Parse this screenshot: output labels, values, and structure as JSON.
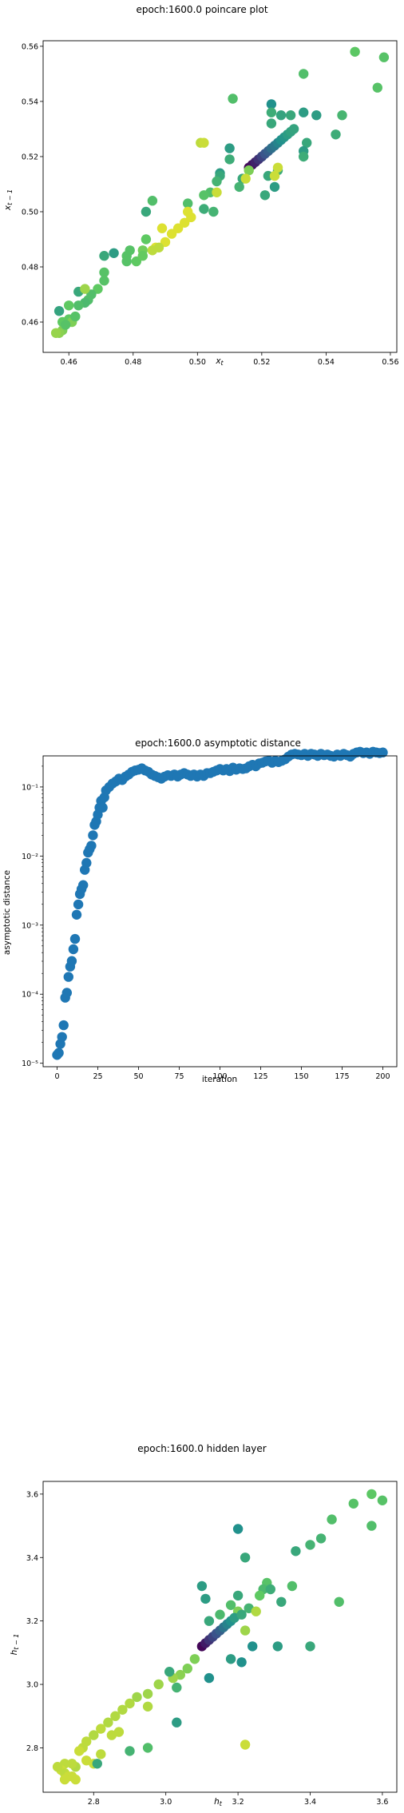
{
  "chart_data": [
    {
      "type": "scatter",
      "title": "epoch:1600.0 poincare plot",
      "xlabel": "x_t",
      "ylabel": "x_{t-1}",
      "xlim": [
        0.452,
        0.562
      ],
      "ylim": [
        0.449,
        0.562
      ],
      "xticks": [
        "0.46",
        "0.48",
        "0.50",
        "0.52",
        "0.54",
        "0.56"
      ],
      "yticks": [
        "0.46",
        "0.48",
        "0.50",
        "0.52",
        "0.54",
        "0.56"
      ],
      "grid": false,
      "colormap": "viridis",
      "points": [
        [
          0.52,
          0.52,
          0.55
        ],
        [
          0.549,
          0.558,
          0.74
        ],
        [
          0.558,
          0.556,
          0.72
        ],
        [
          0.556,
          0.545,
          0.72
        ],
        [
          0.511,
          0.541,
          0.7
        ],
        [
          0.533,
          0.55,
          0.7
        ],
        [
          0.545,
          0.535,
          0.66
        ],
        [
          0.537,
          0.535,
          0.55
        ],
        [
          0.533,
          0.536,
          0.55
        ],
        [
          0.529,
          0.535,
          0.6
        ],
        [
          0.526,
          0.535,
          0.58
        ],
        [
          0.523,
          0.539,
          0.5
        ],
        [
          0.523,
          0.536,
          0.62
        ],
        [
          0.523,
          0.532,
          0.6
        ],
        [
          0.543,
          0.528,
          0.62
        ],
        [
          0.534,
          0.525,
          0.6
        ],
        [
          0.533,
          0.522,
          0.55
        ],
        [
          0.533,
          0.52,
          0.62
        ],
        [
          0.525,
          0.515,
          0.62
        ],
        [
          0.522,
          0.513,
          0.6
        ],
        [
          0.524,
          0.509,
          0.55
        ],
        [
          0.521,
          0.506,
          0.6
        ],
        [
          0.514,
          0.512,
          0.6
        ],
        [
          0.513,
          0.509,
          0.65
        ],
        [
          0.51,
          0.523,
          0.55
        ],
        [
          0.51,
          0.519,
          0.62
        ],
        [
          0.507,
          0.514,
          0.55
        ],
        [
          0.507,
          0.513,
          0.6
        ],
        [
          0.506,
          0.511,
          0.65
        ],
        [
          0.504,
          0.507,
          0.7
        ],
        [
          0.502,
          0.506,
          0.72
        ],
        [
          0.502,
          0.501,
          0.62
        ],
        [
          0.505,
          0.5,
          0.65
        ],
        [
          0.497,
          0.503,
          0.7
        ],
        [
          0.501,
          0.525,
          0.9
        ],
        [
          0.502,
          0.525,
          0.92
        ],
        [
          0.497,
          0.5,
          0.95
        ],
        [
          0.486,
          0.504,
          0.7
        ],
        [
          0.484,
          0.5,
          0.6
        ],
        [
          0.489,
          0.494,
          0.95
        ],
        [
          0.484,
          0.49,
          0.75
        ],
        [
          0.483,
          0.486,
          0.78
        ],
        [
          0.479,
          0.486,
          0.72
        ],
        [
          0.478,
          0.484,
          0.72
        ],
        [
          0.474,
          0.485,
          0.55
        ],
        [
          0.478,
          0.482,
          0.72
        ],
        [
          0.481,
          0.482,
          0.75
        ],
        [
          0.483,
          0.484,
          0.76
        ],
        [
          0.487,
          0.487,
          0.95
        ],
        [
          0.49,
          0.489,
          0.95
        ],
        [
          0.492,
          0.492,
          0.95
        ],
        [
          0.494,
          0.494,
          0.95
        ],
        [
          0.496,
          0.496,
          0.95
        ],
        [
          0.498,
          0.498,
          0.95
        ],
        [
          0.488,
          0.487,
          0.9
        ],
        [
          0.486,
          0.486,
          0.9
        ],
        [
          0.471,
          0.484,
          0.6
        ],
        [
          0.471,
          0.478,
          0.72
        ],
        [
          0.471,
          0.475,
          0.72
        ],
        [
          0.469,
          0.472,
          0.75
        ],
        [
          0.467,
          0.47,
          0.7
        ],
        [
          0.466,
          0.468,
          0.7
        ],
        [
          0.465,
          0.467,
          0.68
        ],
        [
          0.463,
          0.471,
          0.6
        ],
        [
          0.465,
          0.472,
          0.85
        ],
        [
          0.463,
          0.466,
          0.7
        ],
        [
          0.46,
          0.466,
          0.75
        ],
        [
          0.457,
          0.464,
          0.58
        ],
        [
          0.458,
          0.46,
          0.75
        ],
        [
          0.46,
          0.461,
          0.75
        ],
        [
          0.461,
          0.46,
          0.8
        ],
        [
          0.462,
          0.462,
          0.72
        ],
        [
          0.458,
          0.457,
          0.8
        ],
        [
          0.457,
          0.456,
          0.82
        ],
        [
          0.456,
          0.456,
          0.84
        ],
        [
          0.459,
          0.459,
          0.72
        ],
        [
          0.516,
          0.516,
          0.02
        ],
        [
          0.517,
          0.517,
          0.05
        ],
        [
          0.518,
          0.518,
          0.1
        ],
        [
          0.519,
          0.519,
          0.15
        ],
        [
          0.52,
          0.52,
          0.2
        ],
        [
          0.521,
          0.521,
          0.26
        ],
        [
          0.522,
          0.522,
          0.3
        ],
        [
          0.523,
          0.523,
          0.36
        ],
        [
          0.524,
          0.524,
          0.4
        ],
        [
          0.525,
          0.525,
          0.45
        ],
        [
          0.526,
          0.526,
          0.5
        ],
        [
          0.527,
          0.527,
          0.52
        ],
        [
          0.528,
          0.528,
          0.55
        ],
        [
          0.529,
          0.529,
          0.57
        ],
        [
          0.53,
          0.53,
          0.58
        ],
        [
          0.516,
          0.515,
          0.8
        ],
        [
          0.525,
          0.516,
          0.92
        ],
        [
          0.524,
          0.513,
          0.92
        ],
        [
          0.515,
          0.512,
          0.92
        ],
        [
          0.506,
          0.507,
          0.92
        ]
      ]
    },
    {
      "type": "scatter",
      "title": "epoch:1600.0 asymptotic distance",
      "xlabel": "iteration",
      "ylabel": "asymptotic distance",
      "xlim": [
        -8.6,
        208.6
      ],
      "ylim_log10": [
        -5.05,
        -0.55
      ],
      "yscale": "log",
      "xticks": [
        "0",
        "25",
        "50",
        "75",
        "100",
        "125",
        "150",
        "175",
        "200"
      ],
      "yticks": [
        "10⁻⁵",
        "10⁻⁴",
        "10⁻³",
        "10⁻²",
        "10⁻¹"
      ],
      "grid": false,
      "color": "#1f77b4",
      "series_log10": [
        [
          0,
          -4.88
        ],
        [
          1,
          -4.85
        ],
        [
          2,
          -4.72
        ],
        [
          3,
          -4.62
        ],
        [
          4,
          -4.45
        ],
        [
          5,
          -4.05
        ],
        [
          6,
          -3.98
        ],
        [
          7,
          -3.75
        ],
        [
          8,
          -3.6
        ],
        [
          9,
          -3.52
        ],
        [
          10,
          -3.35
        ],
        [
          11,
          -3.2
        ],
        [
          12,
          -2.85
        ],
        [
          13,
          -2.7
        ],
        [
          14,
          -2.55
        ],
        [
          15,
          -2.48
        ],
        [
          16,
          -2.42
        ],
        [
          17,
          -2.2
        ],
        [
          18,
          -2.1
        ],
        [
          19,
          -1.95
        ],
        [
          20,
          -1.9
        ],
        [
          21,
          -1.85
        ],
        [
          22,
          -1.7
        ],
        [
          23,
          -1.55
        ],
        [
          24,
          -1.5
        ],
        [
          25,
          -1.4
        ],
        [
          26,
          -1.3
        ],
        [
          27,
          -1.2
        ],
        [
          28,
          -1.3
        ],
        [
          29,
          -1.15
        ],
        [
          30,
          -1.05
        ],
        [
          32,
          -1.0
        ],
        [
          34,
          -0.95
        ],
        [
          36,
          -0.92
        ],
        [
          38,
          -0.88
        ],
        [
          40,
          -0.9
        ],
        [
          42,
          -0.85
        ],
        [
          44,
          -0.82
        ],
        [
          46,
          -0.78
        ],
        [
          48,
          -0.76
        ],
        [
          50,
          -0.75
        ],
        [
          52,
          -0.73
        ],
        [
          54,
          -0.76
        ],
        [
          56,
          -0.78
        ],
        [
          58,
          -0.82
        ],
        [
          60,
          -0.84
        ],
        [
          62,
          -0.86
        ],
        [
          64,
          -0.88
        ],
        [
          66,
          -0.85
        ],
        [
          68,
          -0.83
        ],
        [
          70,
          -0.84
        ],
        [
          72,
          -0.82
        ],
        [
          74,
          -0.85
        ],
        [
          76,
          -0.82
        ],
        [
          78,
          -0.8
        ],
        [
          80,
          -0.82
        ],
        [
          82,
          -0.84
        ],
        [
          84,
          -0.82
        ],
        [
          86,
          -0.85
        ],
        [
          88,
          -0.82
        ],
        [
          90,
          -0.84
        ],
        [
          92,
          -0.8
        ],
        [
          94,
          -0.8
        ],
        [
          96,
          -0.78
        ],
        [
          98,
          -0.76
        ],
        [
          100,
          -0.74
        ],
        [
          102,
          -0.76
        ],
        [
          104,
          -0.74
        ],
        [
          106,
          -0.77
        ],
        [
          108,
          -0.72
        ],
        [
          110,
          -0.75
        ],
        [
          112,
          -0.73
        ],
        [
          114,
          -0.74
        ],
        [
          116,
          -0.73
        ],
        [
          118,
          -0.7
        ],
        [
          120,
          -0.68
        ],
        [
          122,
          -0.7
        ],
        [
          124,
          -0.66
        ],
        [
          126,
          -0.65
        ],
        [
          128,
          -0.63
        ],
        [
          130,
          -0.62
        ],
        [
          132,
          -0.65
        ],
        [
          134,
          -0.62
        ],
        [
          136,
          -0.64
        ],
        [
          138,
          -0.62
        ],
        [
          140,
          -0.6
        ],
        [
          142,
          -0.56
        ],
        [
          144,
          -0.53
        ],
        [
          146,
          -0.52
        ],
        [
          148,
          -0.53
        ],
        [
          150,
          -0.54
        ],
        [
          152,
          -0.52
        ],
        [
          154,
          -0.55
        ],
        [
          156,
          -0.52
        ],
        [
          158,
          -0.53
        ],
        [
          160,
          -0.55
        ],
        [
          162,
          -0.52
        ],
        [
          164,
          -0.54
        ],
        [
          166,
          -0.53
        ],
        [
          168,
          -0.55
        ],
        [
          170,
          -0.56
        ],
        [
          172,
          -0.53
        ],
        [
          174,
          -0.55
        ],
        [
          176,
          -0.52
        ],
        [
          178,
          -0.54
        ],
        [
          180,
          -0.56
        ],
        [
          182,
          -0.52
        ],
        [
          184,
          -0.5
        ],
        [
          186,
          -0.49
        ],
        [
          188,
          -0.51
        ],
        [
          190,
          -0.5
        ],
        [
          192,
          -0.52
        ],
        [
          194,
          -0.49
        ],
        [
          196,
          -0.5
        ],
        [
          198,
          -0.51
        ],
        [
          200,
          -0.5
        ]
      ]
    },
    {
      "type": "scatter",
      "title": "epoch:1600.0 hidden layer",
      "xlabel": "h_t",
      "ylabel": "h_{t-1}",
      "xlim": [
        2.66,
        3.64
      ],
      "ylim": [
        2.66,
        3.64
      ],
      "xticks": [
        "2.8",
        "3.0",
        "3.2",
        "3.4",
        "3.6"
      ],
      "yticks": [
        "2.8",
        "3.0",
        "3.2",
        "3.4",
        "3.6"
      ],
      "grid": false,
      "colormap": "viridis",
      "points": [
        [
          3.57,
          3.6,
          0.74
        ],
        [
          3.6,
          3.58,
          0.72
        ],
        [
          3.52,
          3.57,
          0.72
        ],
        [
          3.57,
          3.5,
          0.7
        ],
        [
          3.46,
          3.52,
          0.7
        ],
        [
          3.43,
          3.46,
          0.65
        ],
        [
          3.4,
          3.44,
          0.65
        ],
        [
          3.36,
          3.42,
          0.6
        ],
        [
          3.22,
          3.4,
          0.6
        ],
        [
          3.2,
          3.49,
          0.5
        ],
        [
          3.28,
          3.32,
          0.72
        ],
        [
          3.35,
          3.31,
          0.7
        ],
        [
          3.27,
          3.3,
          0.68
        ],
        [
          3.32,
          3.26,
          0.6
        ],
        [
          3.48,
          3.26,
          0.7
        ],
        [
          3.2,
          3.28,
          0.6
        ],
        [
          3.18,
          3.25,
          0.7
        ],
        [
          3.15,
          3.22,
          0.68
        ],
        [
          3.12,
          3.2,
          0.6
        ],
        [
          3.1,
          3.31,
          0.55
        ],
        [
          3.2,
          3.23,
          0.8
        ],
        [
          3.18,
          3.08,
          0.55
        ],
        [
          3.12,
          3.02,
          0.5
        ],
        [
          3.21,
          3.07,
          0.5
        ],
        [
          3.24,
          3.12,
          0.5
        ],
        [
          3.31,
          3.12,
          0.55
        ],
        [
          3.4,
          3.12,
          0.6
        ],
        [
          3.08,
          3.08,
          0.8
        ],
        [
          3.06,
          3.05,
          0.8
        ],
        [
          3.04,
          3.03,
          0.82
        ],
        [
          3.02,
          3.02,
          0.85
        ],
        [
          3.01,
          3.04,
          0.6
        ],
        [
          3.03,
          2.99,
          0.65
        ],
        [
          3.03,
          2.88,
          0.55
        ],
        [
          2.98,
          3.0,
          0.85
        ],
        [
          2.95,
          2.97,
          0.85
        ],
        [
          2.95,
          2.93,
          0.88
        ],
        [
          2.92,
          2.96,
          0.85
        ],
        [
          2.9,
          2.94,
          0.88
        ],
        [
          2.88,
          2.92,
          0.88
        ],
        [
          2.86,
          2.9,
          0.88
        ],
        [
          2.84,
          2.88,
          0.88
        ],
        [
          2.82,
          2.86,
          0.9
        ],
        [
          2.8,
          2.84,
          0.88
        ],
        [
          2.78,
          2.82,
          0.9
        ],
        [
          2.77,
          2.8,
          0.9
        ],
        [
          2.76,
          2.79,
          0.92
        ],
        [
          2.78,
          2.76,
          0.92
        ],
        [
          2.75,
          2.74,
          0.88
        ],
        [
          2.74,
          2.75,
          0.9
        ],
        [
          2.72,
          2.75,
          0.9
        ],
        [
          2.71,
          2.73,
          0.92
        ],
        [
          2.7,
          2.74,
          0.9
        ],
        [
          2.72,
          2.72,
          0.9
        ],
        [
          2.73,
          2.71,
          0.92
        ],
        [
          2.74,
          2.71,
          0.92
        ],
        [
          2.72,
          2.7,
          0.92
        ],
        [
          2.75,
          2.7,
          0.92
        ],
        [
          2.8,
          2.75,
          0.92
        ],
        [
          2.82,
          2.78,
          0.9
        ],
        [
          2.85,
          2.84,
          0.9
        ],
        [
          2.87,
          2.85,
          0.9
        ],
        [
          2.81,
          2.75,
          0.6
        ],
        [
          2.9,
          2.79,
          0.65
        ],
        [
          2.95,
          2.8,
          0.7
        ],
        [
          3.22,
          2.81,
          0.92
        ],
        [
          3.1,
          3.12,
          0.02
        ],
        [
          3.11,
          3.13,
          0.08
        ],
        [
          3.12,
          3.14,
          0.15
        ],
        [
          3.13,
          3.15,
          0.2
        ],
        [
          3.14,
          3.16,
          0.25
        ],
        [
          3.15,
          3.17,
          0.3
        ],
        [
          3.16,
          3.18,
          0.38
        ],
        [
          3.17,
          3.19,
          0.44
        ],
        [
          3.18,
          3.2,
          0.5
        ],
        [
          3.19,
          3.21,
          0.55
        ],
        [
          3.21,
          3.22,
          0.6
        ],
        [
          3.23,
          3.24,
          0.65
        ],
        [
          3.22,
          3.17,
          0.85
        ],
        [
          3.25,
          3.23,
          0.88
        ],
        [
          3.26,
          3.28,
          0.75
        ],
        [
          3.29,
          3.3,
          0.62
        ],
        [
          3.11,
          3.27,
          0.55
        ]
      ]
    }
  ]
}
